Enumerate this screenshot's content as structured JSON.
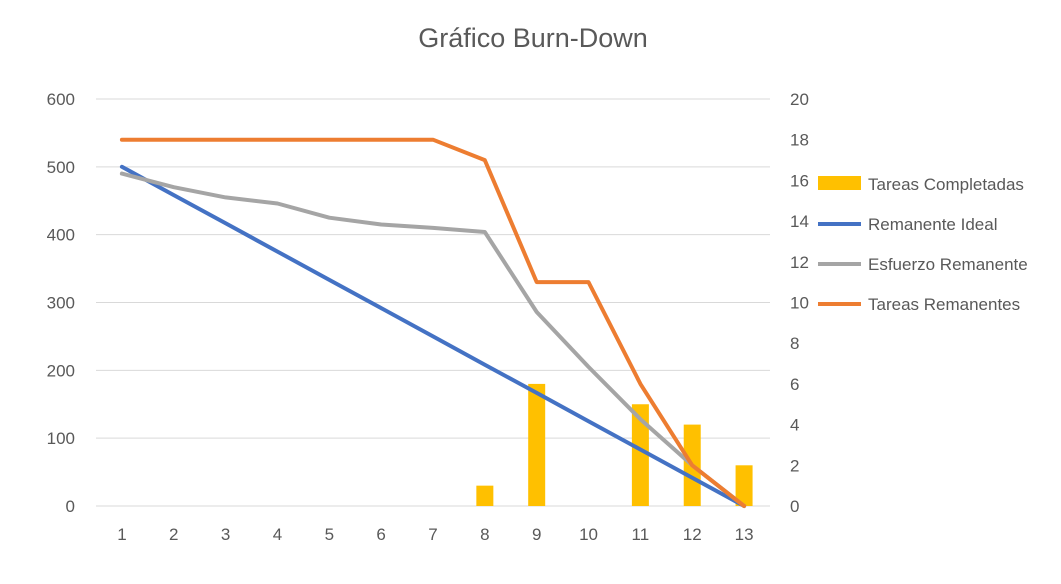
{
  "chart_data": {
    "type": "bar",
    "title": "Gráfico Burn-Down",
    "categories": [
      "1",
      "2",
      "3",
      "4",
      "5",
      "6",
      "7",
      "8",
      "9",
      "10",
      "11",
      "12",
      "13"
    ],
    "y_left": {
      "min": 0,
      "max": 600,
      "ticks": [
        "0",
        "100",
        "200",
        "300",
        "400",
        "500",
        "600"
      ]
    },
    "y_right": {
      "min": 0,
      "max": 20,
      "ticks": [
        "0",
        "2",
        "4",
        "6",
        "8",
        "10",
        "12",
        "14",
        "16",
        "18",
        "20"
      ]
    },
    "grid": true,
    "legend_position": "right",
    "series": [
      {
        "name": "Tareas Completadas",
        "type": "bar",
        "axis": "right",
        "color": "#ffc000",
        "values": [
          0,
          0,
          0,
          0,
          0,
          0,
          0,
          1,
          6,
          0,
          5,
          4,
          2
        ]
      },
      {
        "name": "Remanente Ideal",
        "type": "line",
        "axis": "left",
        "color": "#4472c4",
        "values": [
          500,
          458.3,
          416.7,
          375,
          333.3,
          291.7,
          250,
          208.3,
          166.7,
          125,
          83.3,
          41.7,
          0
        ]
      },
      {
        "name": "Esfuerzo Remanente",
        "type": "line",
        "axis": "left",
        "color": "#a5a5a5",
        "values": [
          490,
          470,
          455,
          446,
          425,
          415,
          410,
          404,
          286,
          205,
          128,
          60,
          0
        ]
      },
      {
        "name": "Tareas Remanentes",
        "type": "line",
        "axis": "right",
        "color": "#ed7d31",
        "values": [
          18,
          18,
          18,
          18,
          18,
          18,
          18,
          17,
          11,
          11,
          6,
          2,
          0
        ]
      }
    ]
  }
}
